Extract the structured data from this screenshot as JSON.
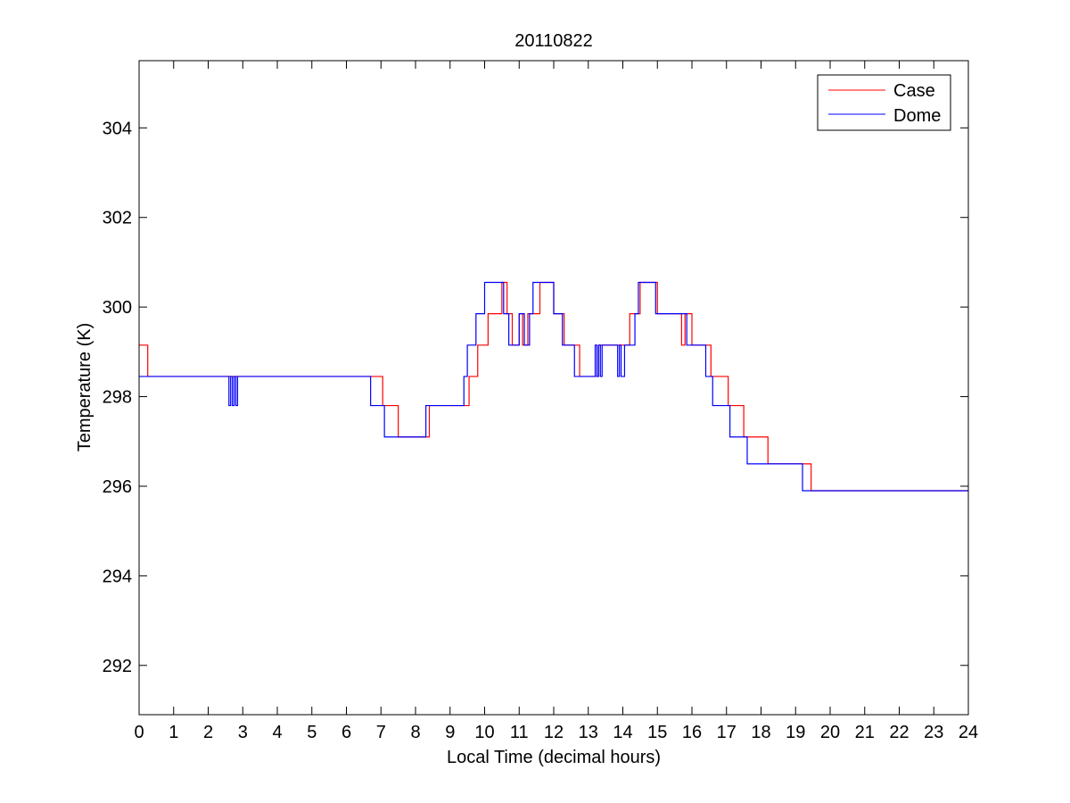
{
  "figure": {
    "title": "20110822",
    "xlabel": "Local Time (decimal hours)",
    "ylabel": "Temperature (K)"
  },
  "colors": {
    "case": "#ff0000",
    "dome": "#0000ff",
    "axis": "#000000",
    "background": "#ffffff"
  },
  "chart_data": {
    "type": "line",
    "title": "20110822",
    "xlabel": "Local Time (decimal hours)",
    "ylabel": "Temperature (K)",
    "xlim": [
      0,
      24
    ],
    "ylim": [
      290.9,
      305.5
    ],
    "xticks": [
      0,
      1,
      2,
      3,
      4,
      5,
      6,
      7,
      8,
      9,
      10,
      11,
      12,
      13,
      14,
      15,
      16,
      17,
      18,
      19,
      20,
      21,
      22,
      23,
      24
    ],
    "yticks": [
      292,
      294,
      296,
      298,
      300,
      302,
      304
    ],
    "grid": false,
    "legend_position": "top-right",
    "step": true,
    "series": [
      {
        "name": "Case",
        "color": "#ff0000",
        "x": [
          0,
          0.25,
          2.6,
          2.65,
          2.75,
          2.8,
          2.9,
          6.95,
          7.05,
          7.3,
          7.5,
          7.6,
          8.35,
          8.4,
          9.45,
          9.55,
          9.8,
          10.1,
          10.5,
          10.65,
          10.8,
          11.0,
          11.1,
          11.25,
          11.4,
          11.6,
          11.7,
          12.0,
          12.3,
          12.75,
          13.2,
          13.3,
          13.35,
          13.45,
          13.9,
          14.0,
          14.2,
          14.5,
          14.9,
          15.0,
          15.7,
          15.8,
          15.85,
          16.0,
          16.55,
          16.65,
          17.05,
          17.15,
          17.5,
          17.55,
          18.2,
          18.25,
          19.45,
          19.55,
          24
        ],
        "y": [
          299.15,
          298.45,
          298.45,
          298.45,
          298.45,
          298.45,
          298.45,
          298.45,
          297.8,
          297.8,
          297.1,
          297.1,
          297.1,
          297.8,
          297.8,
          298.45,
          299.15,
          299.85,
          300.55,
          299.85,
          299.15,
          299.85,
          299.15,
          299.85,
          299.85,
          300.55,
          300.55,
          299.85,
          299.15,
          298.45,
          298.45,
          299.15,
          299.15,
          299.15,
          299.15,
          299.15,
          299.85,
          300.55,
          300.55,
          299.85,
          299.15,
          299.85,
          299.85,
          299.15,
          298.45,
          298.45,
          297.8,
          297.8,
          297.1,
          297.1,
          296.5,
          296.5,
          295.9,
          295.9,
          295.9
        ]
      },
      {
        "name": "Dome",
        "color": "#0000ff",
        "x": [
          0,
          2.6,
          2.65,
          2.7,
          2.75,
          2.8,
          2.85,
          6.7,
          7.05,
          7.1,
          7.2,
          7.35,
          8.3,
          8.45,
          9.4,
          9.5,
          9.75,
          10.0,
          10.35,
          10.55,
          10.7,
          10.85,
          11.0,
          11.15,
          11.3,
          11.4,
          11.5,
          12.0,
          12.25,
          12.6,
          12.75,
          13.2,
          13.25,
          13.3,
          13.35,
          13.4,
          13.45,
          13.85,
          13.9,
          13.95,
          14.05,
          14.35,
          14.45,
          14.95,
          15.05,
          15.75,
          15.85,
          15.95,
          16.4,
          16.6,
          16.95,
          17.1,
          17.4,
          17.6,
          18.05,
          18.2,
          19.2,
          19.3,
          24
        ],
        "y": [
          298.45,
          297.8,
          298.45,
          297.8,
          298.45,
          297.8,
          298.45,
          297.8,
          297.8,
          297.1,
          297.1,
          297.1,
          297.8,
          297.8,
          298.45,
          299.15,
          299.85,
          300.55,
          300.55,
          299.85,
          299.15,
          299.15,
          299.85,
          299.15,
          299.85,
          300.55,
          300.55,
          299.85,
          299.15,
          298.45,
          298.45,
          299.15,
          298.45,
          299.15,
          298.45,
          299.15,
          299.15,
          298.45,
          299.15,
          298.45,
          299.15,
          299.85,
          300.55,
          299.85,
          299.85,
          299.85,
          299.15,
          299.15,
          298.45,
          297.8,
          297.8,
          297.1,
          297.1,
          296.5,
          296.5,
          296.5,
          295.9,
          295.9,
          295.9
        ]
      }
    ]
  }
}
